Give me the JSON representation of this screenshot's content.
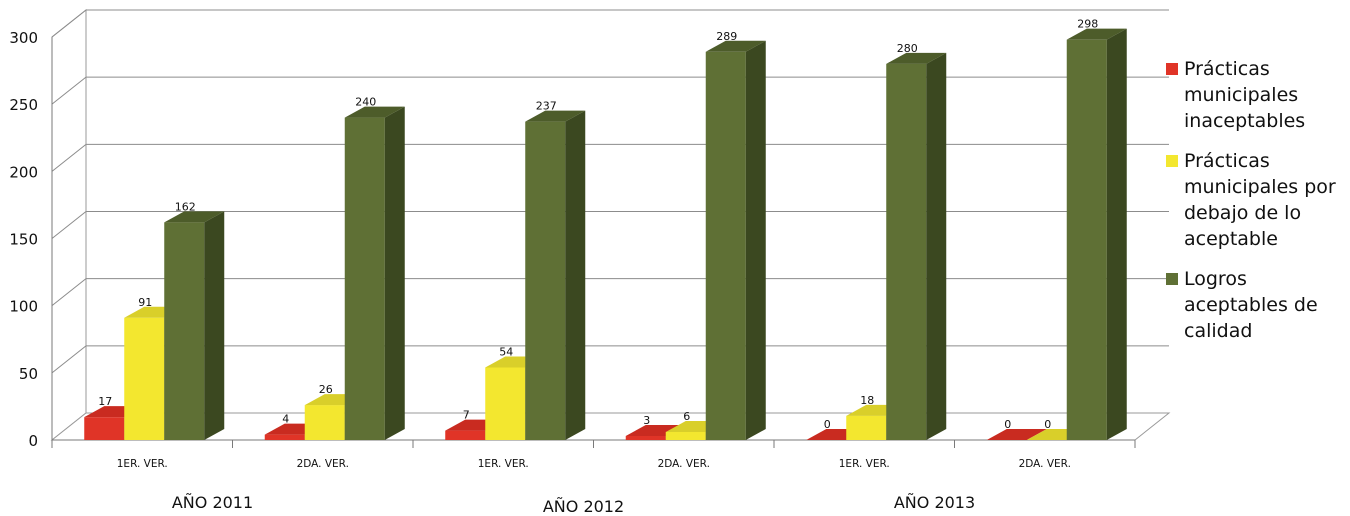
{
  "chart_data": {
    "type": "bar",
    "groups": [
      {
        "label": "AÑO 2011",
        "subcategories": [
          "1ER. VER.",
          "2DA. VER."
        ]
      },
      {
        "label": "AÑO 2012",
        "subcategories": [
          "1ER. VER.",
          "2DA. VER."
        ]
      },
      {
        "label": "AÑO 2013",
        "subcategories": [
          "1ER. VER.",
          "2DA. VER."
        ]
      }
    ],
    "categories": [
      "1ER. VER.",
      "2DA. VER.",
      "1ER. VER.",
      "2DA. VER.",
      "1ER. VER.",
      "2DA. VER."
    ],
    "series": [
      {
        "name": "Prácticas municipales inaceptables",
        "color": "#e03427",
        "top_color": "#c92b20",
        "side_color": "#8f1c14",
        "values": [
          17,
          4,
          7,
          3,
          0,
          0
        ]
      },
      {
        "name": "Prácticas municipales por debajo de lo aceptable",
        "color": "#f3e72f",
        "top_color": "#d9cf2a",
        "side_color": "#a8a01d",
        "values": [
          91,
          26,
          54,
          6,
          18,
          0
        ]
      },
      {
        "name": "Logros aceptables de calidad",
        "color": "#5f7035",
        "top_color": "#4d5c2a",
        "side_color": "#3b4820",
        "values": [
          162,
          240,
          237,
          289,
          280,
          298
        ]
      }
    ],
    "ylim": [
      0,
      300
    ],
    "yticks": [
      0,
      50,
      100,
      150,
      200,
      250,
      300
    ],
    "grid": true,
    "legend_position": "right",
    "style": "3d-clustered-column"
  }
}
